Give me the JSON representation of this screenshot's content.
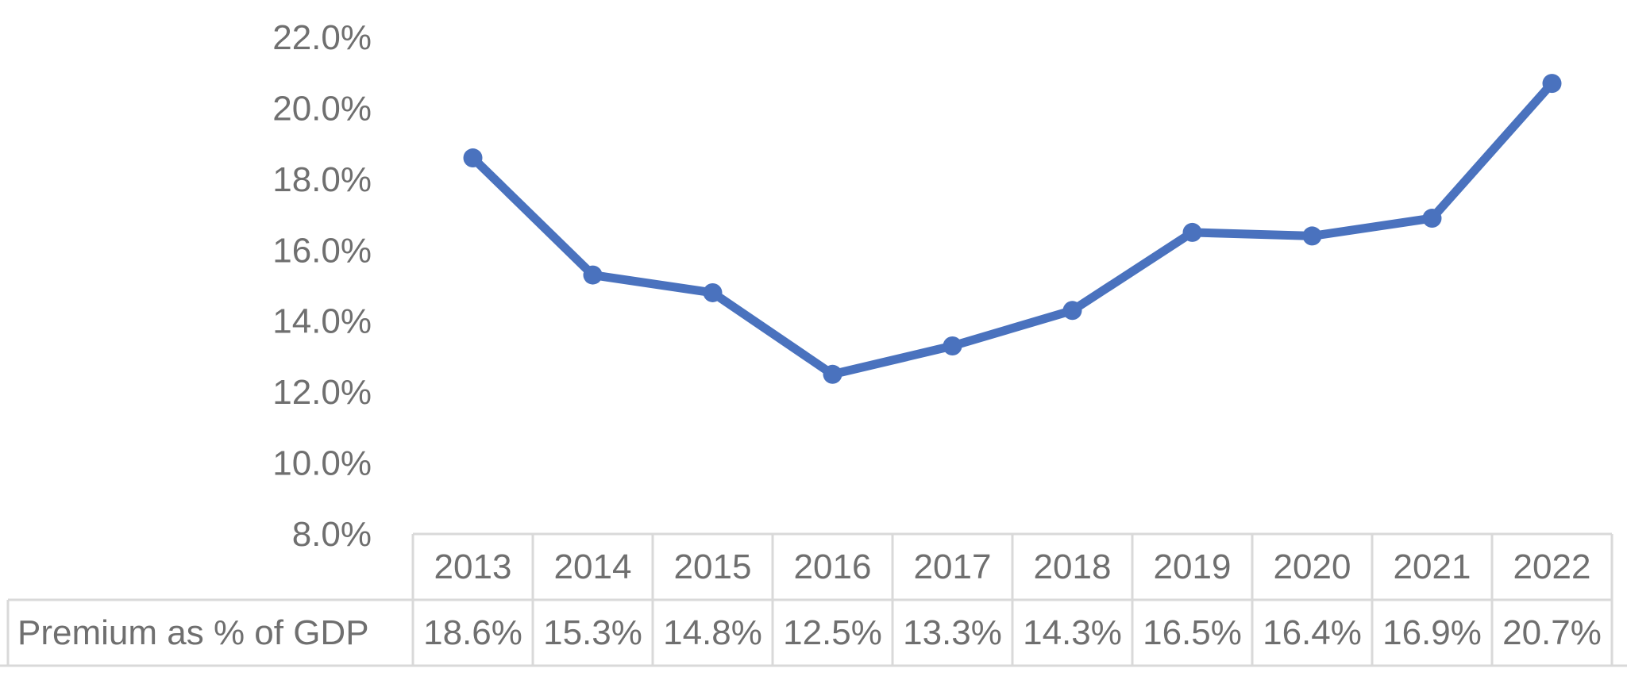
{
  "chart_data": {
    "type": "line",
    "categories": [
      "2013",
      "2014",
      "2015",
      "2016",
      "2017",
      "2018",
      "2019",
      "2020",
      "2021",
      "2022"
    ],
    "series": [
      {
        "name": "Premium as % of GDP",
        "values": [
          18.6,
          15.3,
          14.8,
          12.5,
          13.3,
          14.3,
          16.5,
          16.4,
          16.9,
          20.7
        ],
        "value_labels": [
          "18.6%",
          "15.3%",
          "14.8%",
          "12.5%",
          "13.3%",
          "14.3%",
          "16.5%",
          "16.4%",
          "16.9%",
          "20.7%"
        ],
        "color": "#4a72be"
      }
    ],
    "ylim": [
      8,
      22
    ],
    "y_ticks": [
      {
        "value": 8,
        "label": "8.0%"
      },
      {
        "value": 10,
        "label": "10.0%"
      },
      {
        "value": 12,
        "label": "12.0%"
      },
      {
        "value": 14,
        "label": "14.0%"
      },
      {
        "value": 16,
        "label": "16.0%"
      },
      {
        "value": 18,
        "label": "18.0%"
      },
      {
        "value": 20,
        "label": "20.0%"
      },
      {
        "value": 22,
        "label": "22.0%"
      }
    ],
    "data_table": true,
    "grid": false,
    "text_color": "#6f6f6f",
    "table_border_color": "#d9d9d9"
  }
}
